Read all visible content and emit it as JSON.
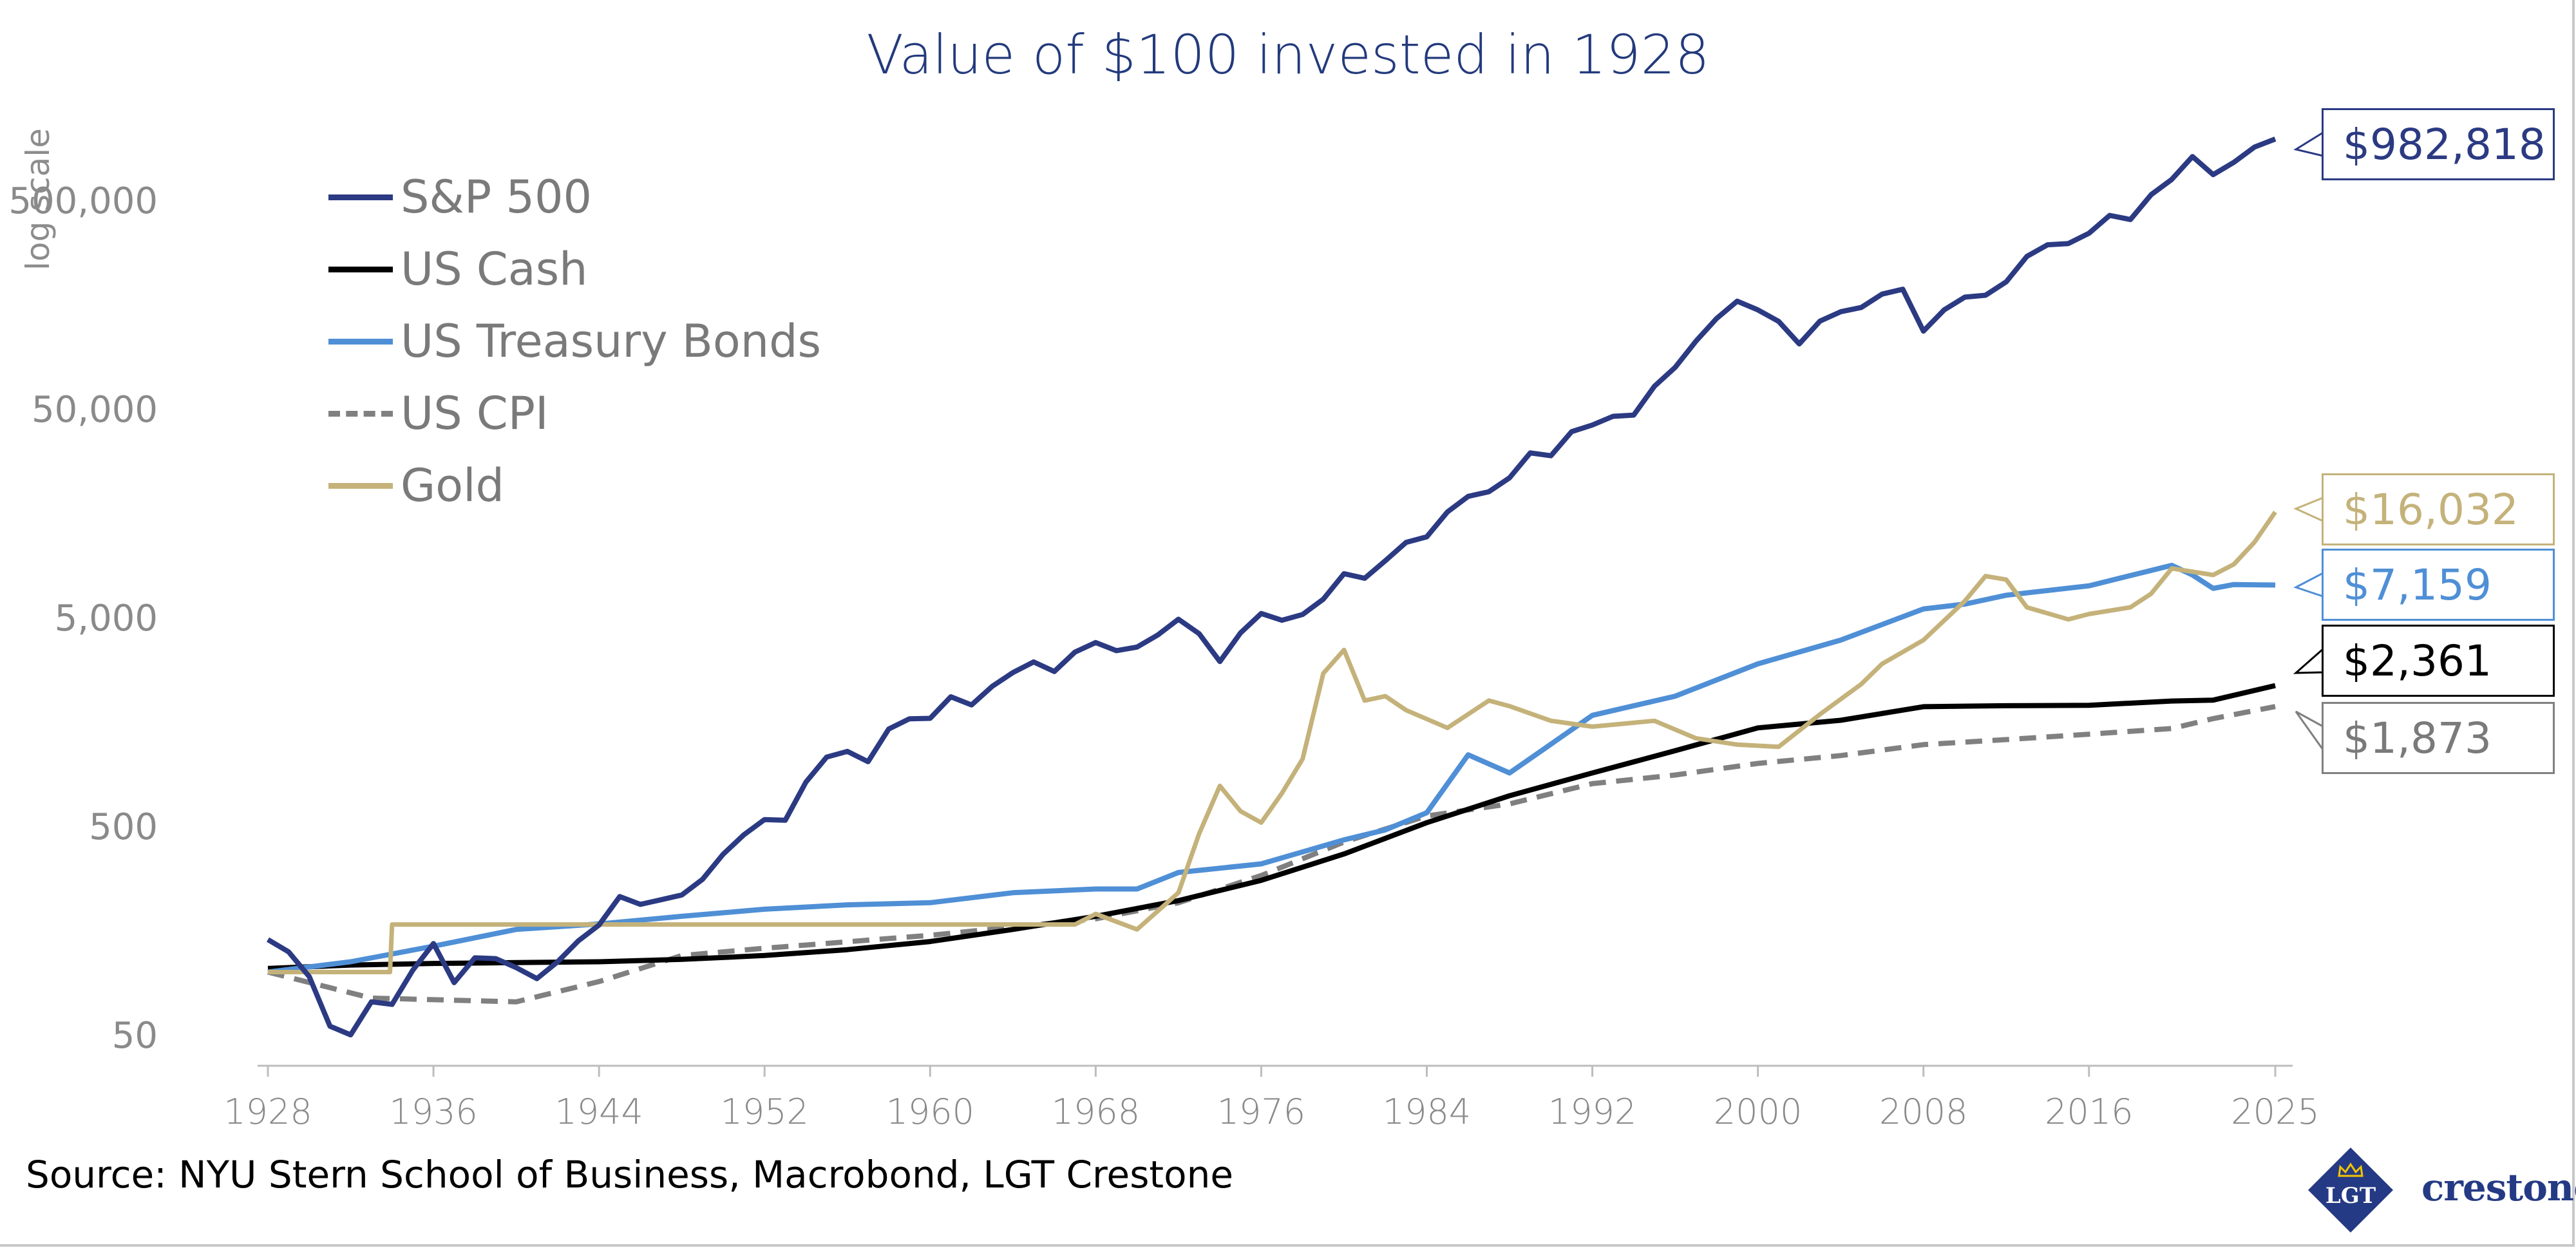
{
  "chart_data": {
    "type": "line",
    "title": "Value of $100 invested in 1928",
    "ylabel": "log scale",
    "yscale": "log",
    "ylim": [
      40,
      1000000
    ],
    "xlim": [
      1928,
      2025
    ],
    "grid": false,
    "legend_position": "top-left",
    "xticks": [
      1928,
      1936,
      1944,
      1952,
      1960,
      1968,
      1976,
      1984,
      1992,
      2000,
      2008,
      2016,
      2025
    ],
    "yticks": [
      50,
      500,
      5000,
      50000,
      500000
    ],
    "ytick_labels": [
      "50",
      "500",
      "5,000",
      "50,000",
      "500,000"
    ],
    "series": [
      {
        "name": "S&P 500",
        "color": "#2b3a82",
        "style": "solid",
        "end_label": "$982,818",
        "x": [
          1928,
          1929,
          1930,
          1931,
          1932,
          1933,
          1934,
          1935,
          1936,
          1937,
          1938,
          1939,
          1940,
          1941,
          1942,
          1943,
          1944,
          1945,
          1946,
          1947,
          1948,
          1949,
          1950,
          1951,
          1952,
          1953,
          1954,
          1955,
          1956,
          1957,
          1958,
          1959,
          1960,
          1961,
          1962,
          1963,
          1964,
          1965,
          1966,
          1967,
          1968,
          1969,
          1970,
          1971,
          1972,
          1973,
          1974,
          1975,
          1976,
          1977,
          1978,
          1979,
          1980,
          1981,
          1982,
          1983,
          1984,
          1985,
          1986,
          1987,
          1988,
          1989,
          1990,
          1991,
          1992,
          1993,
          1994,
          1995,
          1996,
          1997,
          1998,
          1999,
          2000,
          2001,
          2002,
          2003,
          2004,
          2005,
          2006,
          2007,
          2008,
          2009,
          2010,
          2011,
          2012,
          2013,
          2014,
          2015,
          2016,
          2017,
          2018,
          2019,
          2020,
          2021,
          2022,
          2023,
          2024,
          2025
        ],
        "y": [
          143,
          125,
          95,
          55,
          50,
          72,
          70,
          102,
          137,
          89,
          117,
          116,
          105,
          93,
          112,
          141,
          168,
          230,
          211,
          222,
          234,
          278,
          367,
          455,
          538,
          534,
          814,
          1072,
          1142,
          1019,
          1461,
          1636,
          1644,
          2086,
          1906,
          2340,
          2726,
          3065,
          2756,
          3416,
          3794,
          3471,
          3610,
          4124,
          4907,
          4186,
          3077,
          4222,
          5229,
          4854,
          5172,
          6124,
          8110,
          7712,
          9364,
          11471,
          12190,
          16050,
          19046,
          20047,
          23375,
          30774,
          29818,
          38902,
          41864,
          46080,
          46692,
          64234,
          79001,
          105354,
          135488,
          164129,
          149187,
          131457,
          102402,
          131778,
          146114,
          153274,
          177486,
          187239,
          117981,
          149189,
          171653,
          175274,
          203318,
          269158,
          305998,
          310235,
          347395,
          423145,
          404343,
          531670,
          629466,
          810114,
          663384,
          760000,
          900000,
          982818
        ]
      },
      {
        "name": "US Cash",
        "color": "#000000",
        "style": "solid",
        "end_label": "$2,361",
        "x": [
          1928,
          1932,
          1936,
          1940,
          1944,
          1948,
          1952,
          1956,
          1960,
          1964,
          1968,
          1972,
          1976,
          1980,
          1984,
          1988,
          1992,
          1996,
          2000,
          2004,
          2008,
          2012,
          2016,
          2020,
          2022,
          2025
        ],
        "y": [
          104,
          108,
          110,
          111,
          112,
          115,
          120,
          128,
          140,
          160,
          185,
          220,
          275,
          368,
          520,
          700,
          900,
          1150,
          1480,
          1610,
          1870,
          1890,
          1900,
          1990,
          2010,
          2361
        ]
      },
      {
        "name": "US Treasury Bonds",
        "color": "#4f8fd6",
        "style": "solid",
        "end_label": "$7,159",
        "x": [
          1928,
          1932,
          1936,
          1940,
          1944,
          1948,
          1952,
          1956,
          1960,
          1964,
          1968,
          1970,
          1972,
          1976,
          1980,
          1982,
          1984,
          1986,
          1988,
          1992,
          1996,
          2000,
          2004,
          2008,
          2010,
          2012,
          2016,
          2020,
          2021,
          2022,
          2023,
          2025
        ],
        "y": [
          100,
          112,
          133,
          160,
          170,
          185,
          200,
          210,
          215,
          240,
          250,
          250,
          300,
          330,
          430,
          480,
          580,
          1100,
          900,
          1700,
          2100,
          3000,
          3900,
          5500,
          5800,
          6400,
          7100,
          8900,
          8000,
          6900,
          7200,
          7159
        ]
      },
      {
        "name": "US CPI",
        "color": "#808080",
        "style": "dashed",
        "end_label": "$1,873",
        "x": [
          1928,
          1933,
          1940,
          1944,
          1948,
          1952,
          1960,
          1968,
          1972,
          1976,
          1980,
          1984,
          1988,
          1992,
          1996,
          2000,
          2004,
          2008,
          2012,
          2016,
          2020,
          2022,
          2025
        ],
        "y": [
          100,
          75,
          72,
          90,
          120,
          130,
          150,
          180,
          215,
          290,
          420,
          560,
          640,
          800,
          880,
          1000,
          1090,
          1230,
          1300,
          1380,
          1470,
          1640,
          1873
        ]
      },
      {
        "name": "Gold",
        "color": "#c4b27a",
        "style": "solid",
        "end_label": "$16,032",
        "x": [
          1928,
          1933.9,
          1934,
          1967,
          1968,
          1970,
          1972,
          1973,
          1974,
          1975,
          1976,
          1977,
          1978,
          1979,
          1980,
          1981,
          1982,
          1983,
          1985,
          1987,
          1988,
          1990,
          1992,
          1995,
          1997,
          1999,
          2001,
          2003,
          2005,
          2006,
          2008,
          2010,
          2011,
          2012,
          2013,
          2015,
          2016,
          2018,
          2019,
          2020,
          2022,
          2023,
          2024,
          2025
        ],
        "y": [
          100,
          100,
          169,
          169,
          190,
          160,
          240,
          460,
          780,
          590,
          520,
          720,
          1050,
          2700,
          3500,
          2000,
          2100,
          1800,
          1480,
          2000,
          1880,
          1600,
          1500,
          1600,
          1320,
          1230,
          1200,
          1720,
          2400,
          3000,
          3900,
          6000,
          7900,
          7600,
          5600,
          4900,
          5200,
          5600,
          6500,
          8600,
          8000,
          9000,
          11500,
          16032
        ]
      }
    ]
  },
  "footer": {
    "source": "Source: NYU Stern School of Business, Macrobond, LGT Crestone",
    "logo_text": "LGT",
    "brand": "crestone."
  }
}
